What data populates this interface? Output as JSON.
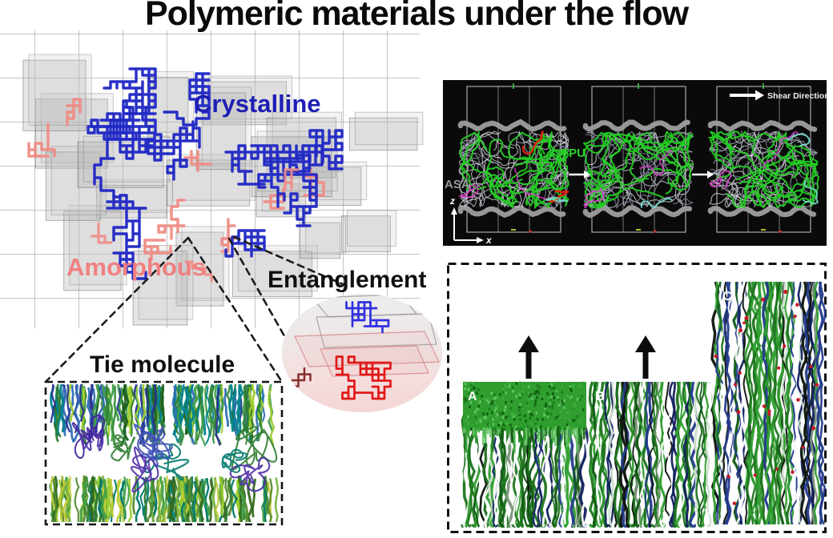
{
  "title": "Polymeric materials under the flow",
  "structure_diagram": {
    "crystalline_label": "Crystalline",
    "amorphous_label": "Amorphous",
    "entanglement_label": "Entanglement",
    "tie_molecule_label": "Tie molecule",
    "crystalline_color": "#1e1eb4",
    "amorphous_color": "#f08080",
    "chain_blue": "#2028c4",
    "chain_pink": "#ef8a84",
    "entanglement_top_chain_color": "#2a2ae0",
    "entanglement_bottom_chain_color": "#e01212"
  },
  "shear_panel": {
    "tpu_label": "TPU",
    "asa_label": "ASA",
    "shear_direction_label": "Shear Direction",
    "z_axis_label": "z",
    "x_axis_label": "x",
    "tpu_color": "#2ed02e",
    "asa_color": "#9a9a9a",
    "background": "#0a0a0a"
  },
  "deformation_panel": {
    "frame_labels": [
      "A",
      "B",
      "C"
    ],
    "fiber_green": "#2f9e2f",
    "fiber_blue": "#233a8c",
    "defect_red": "#c81a28"
  }
}
